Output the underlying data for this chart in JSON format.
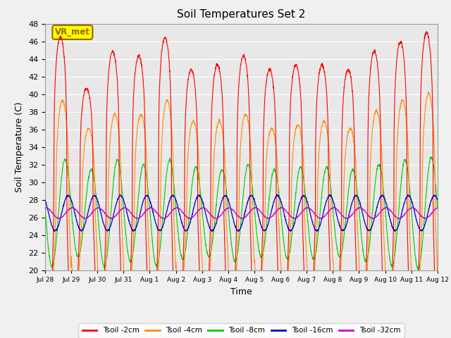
{
  "title": "Soil Temperatures Set 2",
  "xlabel": "Time",
  "ylabel": "Soil Temperature (C)",
  "ylim": [
    20,
    48
  ],
  "yticks": [
    20,
    22,
    24,
    26,
    28,
    30,
    32,
    34,
    36,
    38,
    40,
    42,
    44,
    46,
    48
  ],
  "xtick_labels": [
    "Jul 28",
    "Jul 29",
    "Jul 30",
    "Jul 31",
    "Aug 1",
    "Aug 2",
    "Aug 3",
    "Aug 4",
    "Aug 5",
    "Aug 6",
    "Aug 7",
    "Aug 8",
    "Aug 9",
    "Aug 10",
    "Aug 11",
    "Aug 12"
  ],
  "series_colors": [
    "#ff0000",
    "#ff8c00",
    "#00cc00",
    "#0000cc",
    "#cc00cc"
  ],
  "series_labels": [
    "Tsoil -2cm",
    "Tsoil -4cm",
    "Tsoil -8cm",
    "Tsoil -16cm",
    "Tsoil -32cm"
  ],
  "background_color": "#e8e8e8",
  "grid_color": "#ffffff",
  "fig_bg_color": "#f0f0f0",
  "annotation_text": "VR_met",
  "annotation_bg": "#ffff00",
  "annotation_border": "#996600",
  "n_days": 15,
  "pts_per_day": 144,
  "mean_base": 26.5,
  "amp_2cm": 10.5,
  "amp_4cm": 8.0,
  "amp_8cm": 5.5,
  "amp_16cm": 2.0,
  "amp_32cm": 0.6,
  "phase_lag_4cm": 0.08,
  "phase_lag_8cm": 0.18,
  "phase_lag_16cm": 0.3,
  "phase_lag_32cm": 0.45,
  "peak_sharpness": 0.25,
  "day_amps_2cm": [
    1.9,
    1.35,
    1.75,
    1.7,
    1.9,
    1.55,
    1.6,
    1.7,
    1.55,
    1.6,
    1.6,
    1.55,
    1.75,
    1.85,
    1.95
  ],
  "day_amps_4cm": [
    1.6,
    1.2,
    1.4,
    1.4,
    1.6,
    1.3,
    1.3,
    1.4,
    1.2,
    1.25,
    1.3,
    1.2,
    1.45,
    1.6,
    1.7
  ],
  "day_amps_8cm": [
    1.1,
    0.9,
    1.1,
    1.0,
    1.1,
    0.95,
    0.9,
    1.0,
    0.9,
    0.95,
    0.95,
    0.9,
    1.0,
    1.1,
    1.15
  ]
}
